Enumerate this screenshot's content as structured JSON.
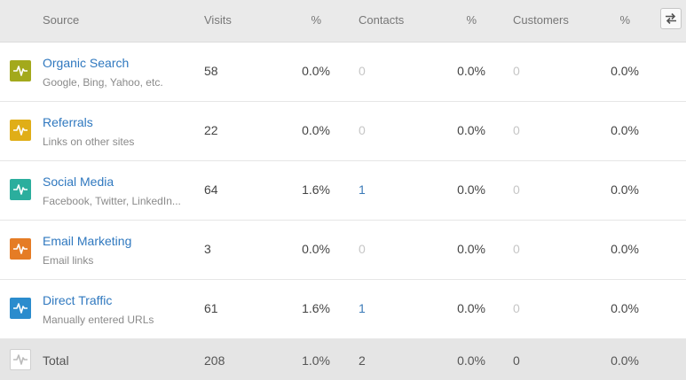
{
  "header": {
    "source": "Source",
    "visits": "Visits",
    "visits_pct": "%",
    "contacts": "Contacts",
    "contacts_pct": "%",
    "customers": "Customers",
    "customers_pct": "%",
    "swap_icon": "swap-arrows-icon"
  },
  "rows": [
    {
      "title": "Organic Search",
      "subtitle": "Google, Bing, Yahoo, etc.",
      "visits": "58",
      "visits_pct": "0.0%",
      "contacts": "0",
      "contacts_pct": "0.0%",
      "customers": "0",
      "customers_pct": "0.0%",
      "color": "#a3a91c"
    },
    {
      "title": "Referrals",
      "subtitle": "Links on other sites",
      "visits": "22",
      "visits_pct": "0.0%",
      "contacts": "0",
      "contacts_pct": "0.0%",
      "customers": "0",
      "customers_pct": "0.0%",
      "color": "#e0ae18"
    },
    {
      "title": "Social Media",
      "subtitle": "Facebook, Twitter, LinkedIn...",
      "visits": "64",
      "visits_pct": "1.6%",
      "contacts": "1",
      "contacts_pct": "0.0%",
      "customers": "0",
      "customers_pct": "0.0%",
      "color": "#2bae9d"
    },
    {
      "title": "Email Marketing",
      "subtitle": "Email links",
      "visits": "3",
      "visits_pct": "0.0%",
      "contacts": "0",
      "contacts_pct": "0.0%",
      "customers": "0",
      "customers_pct": "0.0%",
      "color": "#e57c25"
    },
    {
      "title": "Direct Traffic",
      "subtitle": "Manually entered URLs",
      "visits": "61",
      "visits_pct": "1.6%",
      "contacts": "1",
      "contacts_pct": "0.0%",
      "customers": "0",
      "customers_pct": "0.0%",
      "color": "#2b8ccd"
    }
  ],
  "total": {
    "label": "Total",
    "visits": "208",
    "visits_pct": "1.0%",
    "contacts": "2",
    "contacts_pct": "0.0%",
    "customers": "0",
    "customers_pct": "0.0%"
  }
}
